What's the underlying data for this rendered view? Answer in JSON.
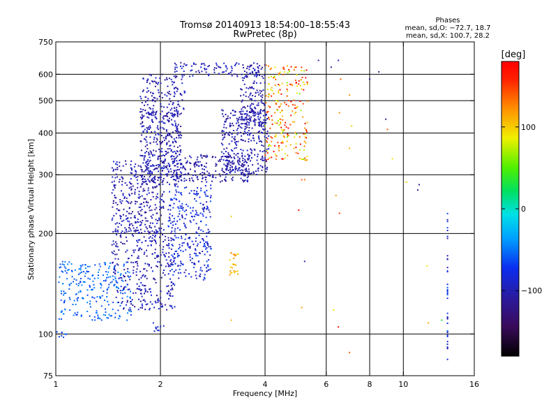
{
  "chart_data": {
    "type": "scatter",
    "title": "Tromsø 20140913 18:54:00–18:55:43",
    "subtitle": "RwPretec (8p)",
    "xlabel": "Frequency [MHz]",
    "ylabel": "Stationary phase Virtual Height [km]",
    "x_scale": "log",
    "y_scale": "log",
    "xlim": [
      1,
      16
    ],
    "ylim": [
      75,
      750
    ],
    "x_ticks": [
      1,
      2,
      4,
      6,
      8,
      10,
      16
    ],
    "x_tick_labels": [
      "1",
      "2",
      "4",
      "6",
      "8",
      "10",
      "16"
    ],
    "y_ticks": [
      75,
      100,
      200,
      300,
      400,
      500,
      600,
      750
    ],
    "y_tick_labels": [
      "75",
      "100",
      "200",
      "300",
      "400",
      "500",
      "600",
      "750"
    ],
    "grid": true,
    "grid_x": [
      2,
      4,
      6,
      8,
      10
    ],
    "grid_y": [
      100,
      200,
      300,
      400,
      500,
      600
    ],
    "phase_stats": {
      "header": "Phases",
      "line_o": "mean, sd,O: −72.7, 18.7",
      "line_x": "mean, sd,X: 100.7, 28.2"
    },
    "colorbar": {
      "label": "[deg]",
      "min": -180,
      "max": 180,
      "ticks": [
        100,
        0,
        -100
      ],
      "tick_labels": [
        "100",
        "0",
        "−100"
      ],
      "colormap": "rainbow (black → purple → blue → cyan → green → yellow → orange → red)"
    },
    "clusters": [
      {
        "name": "low-frequency band",
        "f": [
          1.02,
          1.65
        ],
        "h": [
          110,
          165
        ],
        "phase": [
          -70,
          -40
        ],
        "n": 260
      },
      {
        "name": "O-trace lower",
        "f": [
          1.45,
          2.2
        ],
        "h": [
          118,
          205
        ],
        "phase": [
          -120,
          -80
        ],
        "n": 320
      },
      {
        "name": "O-trace body",
        "f": [
          1.45,
          2.05
        ],
        "h": [
          200,
          330
        ],
        "phase": [
          -120,
          -85
        ],
        "n": 320
      },
      {
        "name": "F-layer cusp",
        "f": [
          1.75,
          2.3
        ],
        "h": [
          280,
          470
        ],
        "phase": [
          -120,
          -85
        ],
        "n": 380
      },
      {
        "name": "F-layer upper",
        "f": [
          1.75,
          2.35
        ],
        "h": [
          450,
          600
        ],
        "phase": [
          -120,
          -85
        ],
        "n": 140
      },
      {
        "name": "spread near 2.5 MHz",
        "f": [
          2.1,
          2.8
        ],
        "h": [
          145,
          280
        ],
        "phase": [
          -105,
          -60
        ],
        "n": 300
      },
      {
        "name": "trace 2.2-3.6 MHz",
        "f": [
          2.15,
          3.6
        ],
        "h": [
          285,
          345
        ],
        "phase": [
          -120,
          -90
        ],
        "n": 220
      },
      {
        "name": "spread 3.0-4.1 MHz",
        "f": [
          3.0,
          4.1
        ],
        "h": [
          300,
          470
        ],
        "phase": [
          -120,
          -85
        ],
        "n": 330
      },
      {
        "name": "upper trace 3.4-4.0 MHz",
        "f": [
          3.4,
          4.0
        ],
        "h": [
          420,
          640
        ],
        "phase": [
          -120,
          -85
        ],
        "n": 160
      },
      {
        "name": "top band",
        "f": [
          2.2,
          3.9
        ],
        "h": [
          590,
          650
        ],
        "phase": [
          -110,
          -80
        ],
        "n": 90
      },
      {
        "name": "X-trace cluster",
        "f": [
          4.0,
          5.3
        ],
        "h": [
          330,
          640
        ],
        "phase": [
          60,
          180
        ],
        "n": 230
      },
      {
        "name": "points near 3.2 MHz",
        "f": [
          3.15,
          3.35
        ],
        "h": [
          150,
          175
        ],
        "phase": [
          90,
          130
        ],
        "n": 25
      },
      {
        "name": "near 2 MHz, 100 km",
        "f": [
          1.9,
          2.05
        ],
        "h": [
          102,
          108
        ],
        "phase": [
          -100,
          -80
        ],
        "n": 10
      },
      {
        "name": "near 1 MHz, 100 km",
        "f": [
          1.0,
          1.08
        ],
        "h": [
          97,
          102
        ],
        "phase": [
          -70,
          -50
        ],
        "n": 8
      }
    ],
    "column_points": {
      "f": 13.4,
      "h": [
        80,
        230
      ],
      "phase": [
        -110,
        -50
      ],
      "n": 40
    },
    "isolated_points": [
      {
        "f": 6.5,
        "h": 660,
        "phase": -100
      },
      {
        "f": 6.6,
        "h": 580,
        "phase": 140
      },
      {
        "f": 6.55,
        "h": 460,
        "phase": 120
      },
      {
        "f": 6.4,
        "h": 260,
        "phase": 120
      },
      {
        "f": 6.5,
        "h": 105,
        "phase": 170
      },
      {
        "f": 6.55,
        "h": 230,
        "phase": 150
      },
      {
        "f": 7.0,
        "h": 520,
        "phase": 120
      },
      {
        "f": 7.1,
        "h": 420,
        "phase": 100
      },
      {
        "f": 7.0,
        "h": 360,
        "phase": 110
      },
      {
        "f": 6.2,
        "h": 630,
        "phase": -110
      },
      {
        "f": 5.7,
        "h": 660,
        "phase": -100
      },
      {
        "f": 8.0,
        "h": 580,
        "phase": -100
      },
      {
        "f": 8.5,
        "h": 610,
        "phase": -120
      },
      {
        "f": 8.9,
        "h": 440,
        "phase": -110
      },
      {
        "f": 9.0,
        "h": 410,
        "phase": 140
      },
      {
        "f": 9.3,
        "h": 335,
        "phase": 90
      },
      {
        "f": 10.2,
        "h": 285,
        "phase": 100
      },
      {
        "f": 11.1,
        "h": 280,
        "phase": -120
      },
      {
        "f": 11.0,
        "h": 270,
        "phase": -110
      },
      {
        "f": 11.7,
        "h": 160,
        "phase": 90
      },
      {
        "f": 11.8,
        "h": 108,
        "phase": 110
      },
      {
        "f": 12.9,
        "h": 110,
        "phase": 30
      },
      {
        "f": 5.1,
        "h": 290,
        "phase": 140
      },
      {
        "f": 5.2,
        "h": 290,
        "phase": 130
      },
      {
        "f": 5.0,
        "h": 235,
        "phase": 170
      },
      {
        "f": 5.2,
        "h": 165,
        "phase": -110
      },
      {
        "f": 5.1,
        "h": 120,
        "phase": 120
      },
      {
        "f": 6.3,
        "h": 118,
        "phase": 90
      },
      {
        "f": 7.0,
        "h": 88,
        "phase": 140
      },
      {
        "f": 3.2,
        "h": 110,
        "phase": 110
      },
      {
        "f": 3.2,
        "h": 225,
        "phase": 100
      }
    ]
  }
}
